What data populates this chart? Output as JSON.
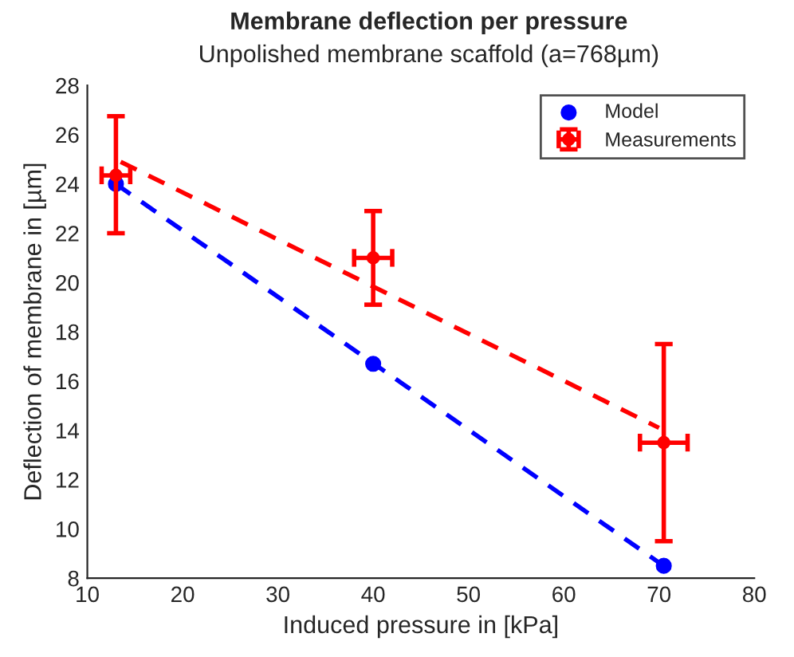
{
  "chart_data": {
    "type": "scatter",
    "title": "Membrane deflection per pressure",
    "subtitle": "Unpolished membrane scaffold (a=768µm)",
    "xlabel": "Induced pressure in [kPa]",
    "ylabel": "Deflection of membrane in [µm]",
    "xlim": [
      10,
      80
    ],
    "xticks": [
      10,
      20,
      30,
      40,
      50,
      60,
      70,
      80
    ],
    "ylim": [
      8,
      28
    ],
    "yticks": [
      8,
      10,
      12,
      14,
      16,
      18,
      20,
      22,
      24,
      26,
      28
    ],
    "grid": false,
    "legend": "top right",
    "series": [
      {
        "type": "line",
        "color": "#0000ff",
        "x": [
          13,
          70.5
        ],
        "values": [
          24,
          8.5
        ],
        "line_style": "dashed",
        "marker": "none"
      },
      {
        "type": "line",
        "color": "#ff0000",
        "x": [
          13.5,
          70
        ],
        "values": [
          24.9,
          14.1
        ],
        "line_style": "dashed",
        "marker": "none"
      },
      {
        "name": "Model",
        "color": "#0000ff",
        "x": [
          13,
          40,
          70.5
        ],
        "values": [
          24,
          16.7,
          8.5
        ],
        "marker": "circle"
      },
      {
        "name": "Measurements",
        "color": "#ff0000",
        "x": [
          13,
          40,
          70.5
        ],
        "values": [
          24.35,
          21,
          13.5
        ],
        "marker": "circle",
        "errors": [
          [
            22,
            26.75
          ],
          [
            19.1,
            22.9
          ],
          [
            9.5,
            17.5
          ]
        ],
        "xerrors": [
          [
            11.5,
            14.5
          ],
          [
            38,
            42
          ],
          [
            68,
            73
          ]
        ]
      }
    ]
  }
}
